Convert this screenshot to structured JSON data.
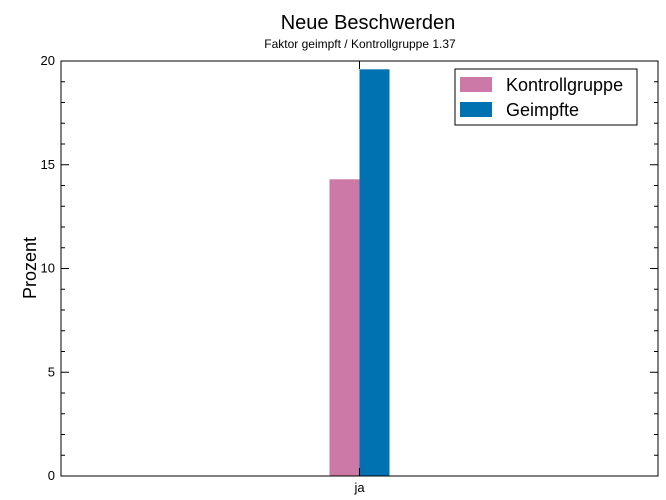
{
  "chart_data": {
    "type": "bar",
    "title": "Neue Beschwerden",
    "subtitle": "Faktor geimpft / Kontrollgruppe 1.37",
    "xlabel": "",
    "ylabel": "Prozent",
    "categories": [
      "ja"
    ],
    "series": [
      {
        "name": "Kontrollgruppe",
        "values": [
          14.3
        ],
        "color": "#cc79a7"
      },
      {
        "name": "Geimpfte",
        "values": [
          19.6
        ],
        "color": "#0072b2"
      }
    ],
    "ylim": [
      0,
      20
    ],
    "yticks": [
      0,
      5,
      10,
      15,
      20
    ],
    "legend": "top-right",
    "grid": false
  }
}
